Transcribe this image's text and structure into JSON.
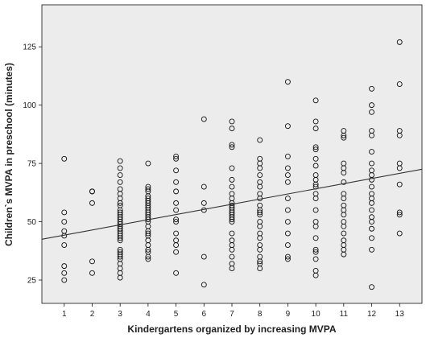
{
  "chart_data": {
    "type": "scatter",
    "title": "",
    "xlabel": "Kindergartens organized by increasing MVPA",
    "ylabel": "Children`s MVPA in preschool (minutes)",
    "xlim": [
      0.2,
      13.8
    ],
    "ylim": [
      15,
      143
    ],
    "x_ticks": [
      1,
      2,
      3,
      4,
      5,
      6,
      7,
      8,
      9,
      10,
      11,
      12,
      13
    ],
    "y_ticks": [
      25,
      50,
      75,
      100,
      125
    ],
    "grid": false,
    "legend": "none",
    "colors": {
      "plot_background": "#ececec",
      "marker_stroke": "#111111",
      "fit_line": "#333333"
    },
    "fit_line": {
      "type": "linear",
      "points": [
        [
          0.2,
          42.5
        ],
        [
          13.8,
          72.5
        ]
      ]
    },
    "series": [
      {
        "x": [
          1,
          1,
          1,
          1,
          1,
          1,
          1,
          1,
          1,
          2,
          2,
          2,
          2,
          2,
          3,
          3,
          3,
          3,
          3,
          3,
          3,
          3,
          3,
          3,
          3,
          3,
          3,
          3,
          3,
          3,
          3,
          3,
          3,
          3,
          3,
          3,
          3,
          3,
          3,
          3,
          3,
          3,
          3,
          3,
          3,
          3,
          4,
          4,
          4,
          4,
          4,
          4,
          4,
          4,
          4,
          4,
          4,
          4,
          4,
          4,
          4,
          4,
          4,
          4,
          4,
          4,
          4,
          4,
          4,
          4,
          4,
          4,
          5,
          5,
          5,
          5,
          5,
          5,
          5,
          5,
          5,
          5,
          5,
          5,
          5,
          5,
          6,
          6,
          6,
          6,
          6,
          6,
          7,
          7,
          7,
          7,
          7,
          7,
          7,
          7,
          7,
          7,
          7,
          7,
          7,
          7,
          7,
          7,
          7,
          7,
          7,
          7,
          7,
          7,
          7,
          7,
          7,
          8,
          8,
          8,
          8,
          8,
          8,
          8,
          8,
          8,
          8,
          8,
          8,
          8,
          8,
          8,
          8,
          8,
          8,
          8,
          8,
          8,
          8,
          8,
          9,
          9,
          9,
          9,
          9,
          9,
          9,
          9,
          9,
          9,
          9,
          9,
          9,
          10,
          10,
          10,
          10,
          10,
          10,
          10,
          10,
          10,
          10,
          10,
          10,
          10,
          10,
          10,
          10,
          10,
          10,
          10,
          10,
          10,
          10,
          11,
          11,
          11,
          11,
          11,
          11,
          11,
          11,
          11,
          11,
          11,
          11,
          11,
          11,
          11,
          11,
          11,
          11,
          11,
          12,
          12,
          12,
          12,
          12,
          12,
          12,
          12,
          12,
          12,
          12,
          12,
          12,
          12,
          12,
          12,
          12,
          12,
          12,
          12,
          12,
          13,
          13,
          13,
          13,
          13,
          13,
          13,
          13,
          13,
          13
        ],
        "y": [
          77,
          54,
          50,
          46,
          44,
          40,
          31,
          28,
          25,
          63,
          63,
          58,
          33,
          28,
          76,
          73,
          70,
          67,
          64,
          62,
          60,
          58,
          57,
          55,
          54,
          53,
          52,
          51,
          50,
          49,
          48,
          47,
          46,
          45,
          44,
          43,
          42,
          38,
          37,
          36,
          35,
          34,
          32,
          30,
          28,
          26,
          75,
          65,
          64,
          63,
          61,
          60,
          59,
          58,
          57,
          56,
          55,
          54,
          53,
          52,
          51,
          50,
          48,
          46,
          45,
          44,
          42,
          40,
          38,
          37,
          35,
          34,
          78,
          77,
          72,
          67,
          63,
          58,
          55,
          51,
          50,
          45,
          42,
          40,
          37,
          28,
          94,
          65,
          58,
          55,
          35,
          23,
          93,
          90,
          83,
          82,
          73,
          68,
          65,
          62,
          60,
          58,
          57,
          56,
          55,
          54,
          53,
          52,
          51,
          50,
          45,
          42,
          40,
          38,
          35,
          32,
          30,
          85,
          77,
          75,
          73,
          70,
          67,
          65,
          62,
          60,
          57,
          55,
          54,
          53,
          50,
          48,
          45,
          43,
          40,
          38,
          35,
          33,
          32,
          30,
          110,
          91,
          78,
          73,
          70,
          67,
          60,
          55,
          50,
          45,
          40,
          35,
          34,
          102,
          93,
          90,
          82,
          81,
          77,
          74,
          70,
          68,
          66,
          65,
          62,
          60,
          55,
          50,
          48,
          43,
          38,
          37,
          34,
          29,
          27,
          89,
          87,
          86,
          75,
          73,
          71,
          67,
          62,
          60,
          57,
          55,
          53,
          50,
          48,
          45,
          42,
          40,
          38,
          36,
          107,
          100,
          97,
          89,
          87,
          80,
          75,
          72,
          70,
          68,
          65,
          62,
          60,
          58,
          55,
          52,
          50,
          47,
          43,
          38,
          22,
          127,
          109,
          89,
          87,
          75,
          73,
          66,
          54,
          53,
          45
        ]
      }
    ]
  }
}
